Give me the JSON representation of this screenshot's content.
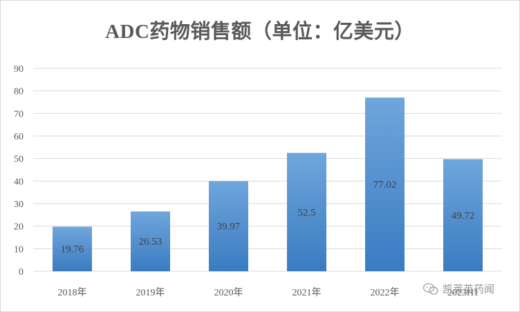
{
  "chart_data": {
    "type": "bar",
    "title": "ADC药物销售额（单位：亿美元）",
    "categories": [
      "2018年",
      "2019年",
      "2020年",
      "2021年",
      "2022年",
      "2023H1"
    ],
    "values": [
      19.76,
      26.53,
      39.97,
      52.5,
      77.02,
      49.72
    ],
    "value_labels": [
      "19.76",
      "26.53",
      "39.97",
      "52.5",
      "77.02",
      "49.72"
    ],
    "xlabel": "",
    "ylabel": "",
    "ylim": [
      0,
      90
    ],
    "yticks": [
      0,
      10,
      20,
      30,
      40,
      50,
      60,
      70,
      80,
      90
    ],
    "grid": true,
    "legend": "none",
    "colors": {
      "bar_top": "#6fa6dc",
      "bar_bottom": "#3a7bc1",
      "grid": "#d9d9d9",
      "text": "#595959"
    }
  },
  "watermark": {
    "text": "凯莱英药闻",
    "icon": "wechat-icon"
  }
}
